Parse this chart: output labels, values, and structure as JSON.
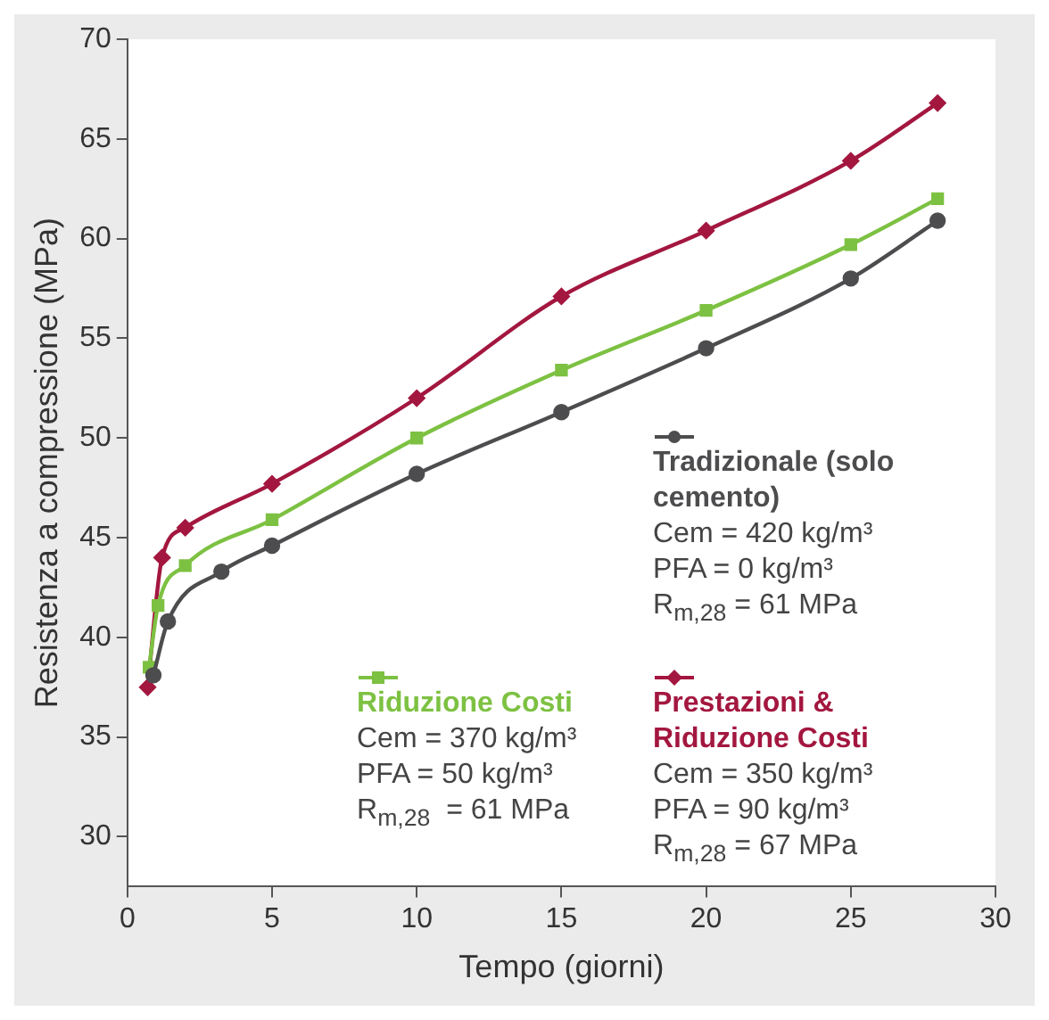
{
  "chart_data": {
    "type": "line",
    "xlabel": "Tempo (giorni)",
    "ylabel": "Resistenza a compressione (MPa)",
    "xlim": [
      0,
      30
    ],
    "xticks": [
      0,
      5,
      10,
      15,
      20,
      25,
      30
    ],
    "ylim": [
      27.5,
      70
    ],
    "yticks": [
      30,
      35,
      40,
      45,
      50,
      55,
      60,
      65,
      70
    ],
    "grid": false,
    "legend": "bottom right",
    "line_style": "solid",
    "series": [
      {
        "name": "Tradizionale (solo cemento)",
        "color": "#4d4d4f",
        "marker": "circle",
        "x": [
          0.9,
          1.4,
          3.25,
          5,
          10,
          15,
          20,
          25,
          28
        ],
        "values": [
          38.1,
          40.8,
          43.3,
          44.6,
          48.2,
          51.3,
          54.5,
          58,
          60.9
        ]
      },
      {
        "name": "Riduzione Costi",
        "color": "#7dc142",
        "marker": "square",
        "x": [
          0.75,
          1.06,
          2,
          5,
          10,
          15,
          20,
          25,
          28
        ],
        "values": [
          38.5,
          41.6,
          43.6,
          45.9,
          50,
          53.4,
          56.4,
          59.7,
          62
        ]
      },
      {
        "name": "Prestazioni & Riduzione Costi",
        "color": "#a3173f",
        "marker": "diamond",
        "x": [
          0.7,
          1.2,
          2,
          5,
          10,
          15,
          20,
          25,
          28
        ],
        "values": [
          37.5,
          44,
          45.5,
          47.7,
          52,
          57.1,
          60.4,
          63.9,
          66.8
        ]
      }
    ],
    "annotations": [
      "Cem = 420 kg/m³",
      "PFA = 0 kg/m³",
      "R$_{m,28}$ = 61 MPa",
      "Cem = 370 kg/m³",
      "PFA = 50 kg/m³",
      "R$_{m,28}$  = 61 MPa",
      "Cem = 350 kg/m³",
      "PFA = 90 kg/m³",
      "R$_{m,28}$ = 67 MPa"
    ]
  }
}
